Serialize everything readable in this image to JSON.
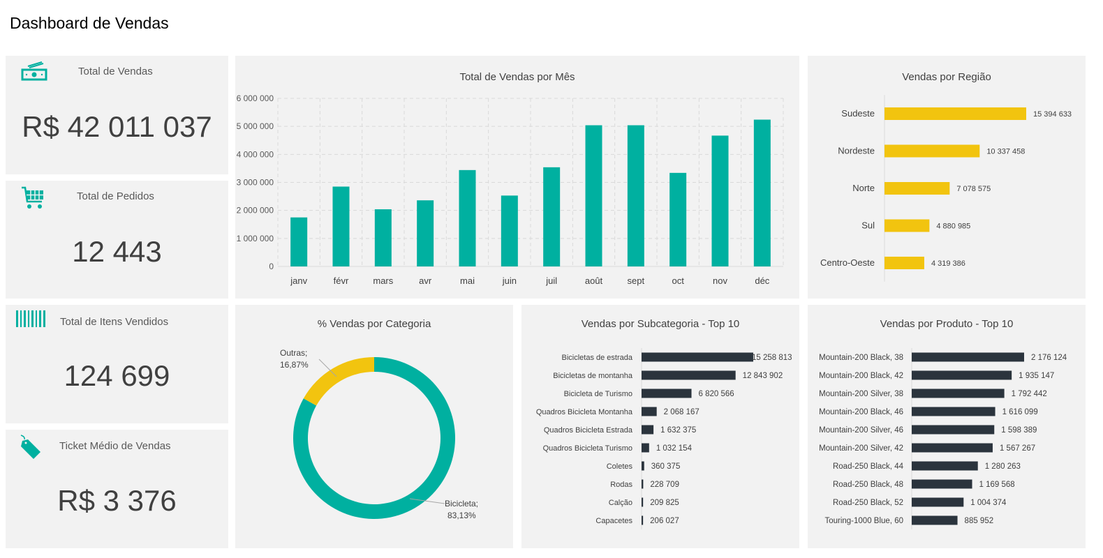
{
  "page_title": "Dashboard de Vendas",
  "colors": {
    "teal": "#00b0a0",
    "yellow": "#f2c40f",
    "dark": "#2b343d",
    "panel": "#f2f2f2"
  },
  "kpis": [
    {
      "label": "Total de Vendas",
      "value": "R$ 42 011 037",
      "icon": "money-icon"
    },
    {
      "label": "Total de Pedidos",
      "value": "12 443",
      "icon": "shopping-cart-icon"
    },
    {
      "label": "Total de Itens Vendidos",
      "value": "124 699",
      "icon": "barcode-icon"
    },
    {
      "label": "Ticket Médio de Vendas",
      "value": "R$ 3 376",
      "icon": "price-tag-icon"
    }
  ],
  "chart_data": [
    {
      "type": "bar",
      "title": "Total de Vendas por Mês",
      "categories": [
        "janv",
        "févr",
        "mars",
        "avr",
        "mai",
        "juin",
        "juil",
        "août",
        "sept",
        "oct",
        "nov",
        "déc"
      ],
      "values": [
        1750000,
        2850000,
        2040000,
        2360000,
        3440000,
        2530000,
        3540000,
        5040000,
        5040000,
        3340000,
        4670000,
        5240000
      ],
      "ylim": [
        0,
        6000000
      ],
      "yticks": [
        "0",
        "1 000 000",
        "2 000 000",
        "3 000 000",
        "4 000 000",
        "5 000 000",
        "6 000 000"
      ],
      "grid": true
    },
    {
      "type": "bar",
      "orientation": "horizontal",
      "title": "Vendas por Região",
      "categories": [
        "Sudeste",
        "Nordeste",
        "Norte",
        "Sul",
        "Centro-Oeste"
      ],
      "values": [
        15394633,
        10337458,
        7078575,
        4880985,
        4319386
      ],
      "labels": [
        "15 394 633",
        "10 337 458",
        "7 078 575",
        "4 880 985",
        "4 319 386"
      ]
    },
    {
      "type": "pie",
      "title": "% Vendas por Categoria",
      "categories": [
        "Bicicleta",
        "Outras"
      ],
      "values": [
        83.13,
        16.87
      ],
      "labels": [
        "Bicicleta;",
        "Outras;"
      ],
      "pct_labels": [
        "83,13%",
        "16,87%"
      ]
    },
    {
      "type": "bar",
      "orientation": "horizontal",
      "title": "Vendas por Subcategoria - Top 10",
      "categories": [
        "Bicicletas de estrada",
        "Bicicletas de montanha",
        "Bicicleta de Turismo",
        "Quadros Bicicleta Montanha",
        "Quadros Bicicleta Estrada",
        "Quadros Bicicleta Turismo",
        "Coletes",
        "Rodas",
        "Calção",
        "Capacetes"
      ],
      "values": [
        15258813,
        12843902,
        6820566,
        2068167,
        1632375,
        1032154,
        360375,
        228709,
        209825,
        206027
      ],
      "labels": [
        "15 258 813",
        "12 843 902",
        "6 820 566",
        "2 068 167",
        "1 632 375",
        "1 032 154",
        "360 375",
        "228 709",
        "209 825",
        "206 027"
      ]
    },
    {
      "type": "bar",
      "orientation": "horizontal",
      "title": "Vendas por Produto - Top 10",
      "categories": [
        "Mountain-200 Black, 38",
        "Mountain-200 Black, 42",
        "Mountain-200 Silver, 38",
        "Mountain-200 Black, 46",
        "Mountain-200 Silver, 46",
        "Mountain-200 Silver, 42",
        "Road-250 Black, 44",
        "Road-250 Black, 48",
        "Road-250 Black, 52",
        "Touring-1000 Blue, 60"
      ],
      "values": [
        2176124,
        1935147,
        1792442,
        1616099,
        1598389,
        1567267,
        1280263,
        1169568,
        1004374,
        885952
      ],
      "labels": [
        "2 176 124",
        "1 935 147",
        "1 792 442",
        "1 616 099",
        "1 598 389",
        "1 567 267",
        "1 280 263",
        "1 169 568",
        "1 004 374",
        "885 952"
      ]
    }
  ]
}
